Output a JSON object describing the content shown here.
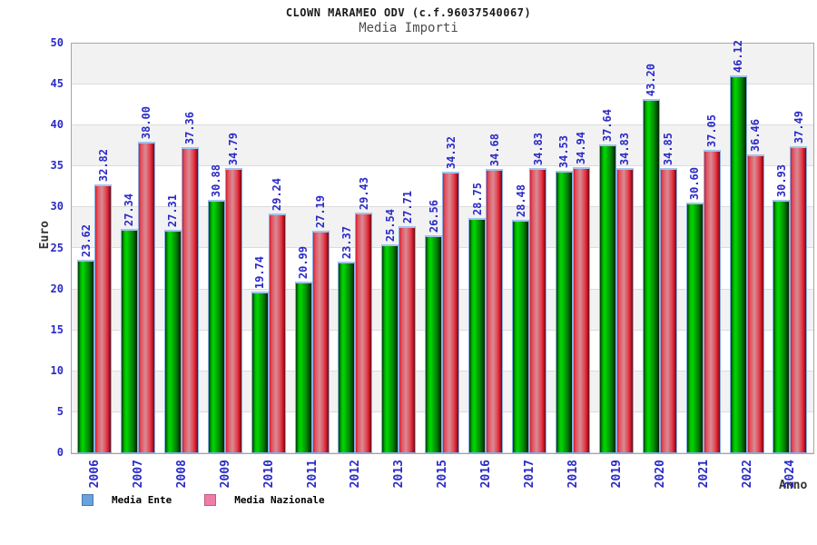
{
  "header": {
    "title": "CLOWN MARAMEO ODV (c.f.96037540067)",
    "subtitle": "Media Importi"
  },
  "chart_data": {
    "type": "bar",
    "title": "CLOWN MARAMEO ODV (c.f.96037540067)",
    "subtitle": "Media Importi",
    "xlabel": "Anno",
    "ylabel": "Euro",
    "ylim": [
      0,
      50
    ],
    "ytick_step": 5,
    "grid": "horizontal-bands-alternating",
    "legend_position": "bottom-left",
    "value_label_decimals": 2,
    "categories": [
      "2006",
      "2007",
      "2008",
      "2009",
      "2010",
      "2011",
      "2012",
      "2013",
      "2015",
      "2016",
      "2017",
      "2018",
      "2019",
      "2020",
      "2021",
      "2022",
      "2024"
    ],
    "series": [
      {
        "name": "Media Ente",
        "bar_color": "#00cc00",
        "legend_swatch_color": "#6aa2dc",
        "legend_swatch_border": "#4a7ab0",
        "values": [
          23.62,
          27.34,
          27.31,
          30.88,
          19.74,
          20.99,
          23.37,
          25.54,
          26.56,
          28.75,
          28.48,
          34.53,
          37.64,
          43.2,
          30.6,
          46.12,
          30.93
        ]
      },
      {
        "name": "Media Nazionale",
        "bar_color": "#e03a48",
        "legend_swatch_color": "#f07ca8",
        "legend_swatch_border": "#c05a84",
        "values": [
          32.82,
          38.0,
          37.36,
          34.79,
          29.24,
          27.19,
          29.43,
          27.71,
          34.32,
          34.68,
          34.83,
          34.94,
          34.83,
          34.85,
          37.05,
          36.46,
          37.49
        ]
      }
    ]
  },
  "colors": {
    "tick_text": "#2a2ac8",
    "axis_title_text": "#333333",
    "band_gray": "#f2f2f2",
    "band_white": "#ffffff",
    "plot_border": "#a6a6a6",
    "bar_cap_blue": "#a3c4ec"
  }
}
